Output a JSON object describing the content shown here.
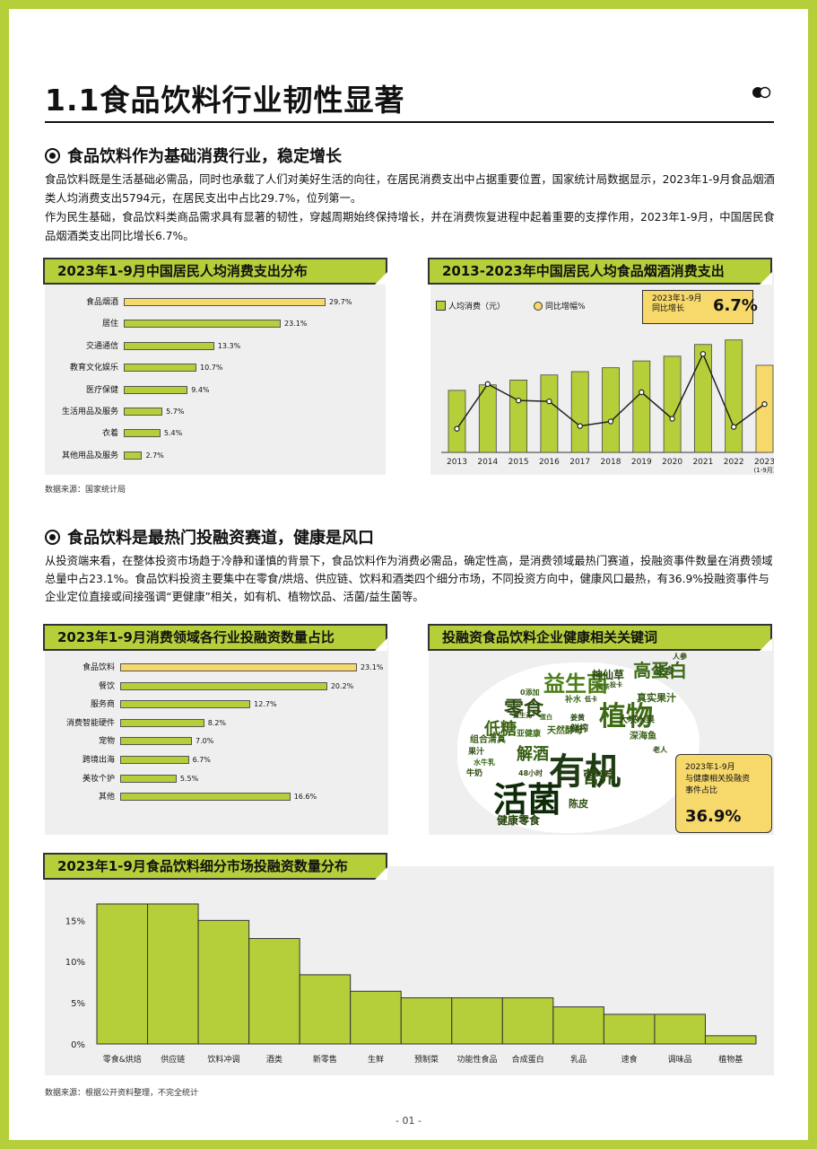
{
  "title": "1.1食品饮料行业韧性显著",
  "section1": {
    "heading": "食品饮料作为基础消费行业，稳定增长",
    "p1": "食品饮料既是生活基础必需品，同时也承载了人们对美好生活的向往，在居民消费支出中占据重要位置，国家统计局数据显示，2023年1-9月食品烟酒类人均消费支出5794元，在居民支出中占比29.7%，位列第一。",
    "p2": "作为民生基础，食品饮料类商品需求具有显著的韧性，穿越周期始终保持增长，并在消费恢复进程中起着重要的支撑作用，2023年1-9月，中国居民食品烟酒类支出同比增长6.7%。"
  },
  "chart1": {
    "tag": "2023年1-9月中国居民人均消费支出分布",
    "chart_data": {
      "type": "bar",
      "categories": [
        "食品烟酒",
        "居住",
        "交通通信",
        "教育文化娱乐",
        "医疗保健",
        "生活用品及服务",
        "衣着",
        "其他用品及服务"
      ],
      "values": [
        29.7,
        23.1,
        13.3,
        10.7,
        9.4,
        5.7,
        5.4,
        2.7
      ],
      "labels": [
        "29.7%",
        "23.1%",
        "13.3%",
        "10.7%",
        "9.4%",
        "5.7%",
        "5.4%",
        "2.7%"
      ],
      "colors": [
        "#f6d86b",
        "#b5cf3a",
        "#b5cf3a",
        "#b5cf3a",
        "#b5cf3a",
        "#b5cf3a",
        "#b5cf3a",
        "#b5cf3a"
      ]
    }
  },
  "chart2": {
    "tag": "2013-2023年中国居民人均食品烟酒消费支出",
    "legend_bar": "人均消费（元）",
    "legend_line": "同比增幅%",
    "callout_label": "2023年1-9月\n同比增长",
    "callout_value": "6.7%",
    "chart_data": {
      "type": "bar+line",
      "categories": [
        "2013",
        "2014",
        "2015",
        "2016",
        "2017",
        "2018",
        "2019",
        "2020",
        "2021",
        "2022",
        "2023"
      ],
      "last_sublabel": "(1-9月)",
      "bar_values": [
        4127,
        4494,
        4814,
        5151,
        5374,
        5631,
        6084,
        6397,
        7178,
        7481,
        5794
      ],
      "line_values": [
        4.0,
        8.9,
        7.1,
        7.0,
        4.3,
        4.8,
        8.0,
        5.1,
        12.2,
        4.2,
        6.7
      ],
      "bar_colors": [
        "#b5cf3a",
        "#b5cf3a",
        "#b5cf3a",
        "#b5cf3a",
        "#b5cf3a",
        "#b5cf3a",
        "#b5cf3a",
        "#b5cf3a",
        "#b5cf3a",
        "#b5cf3a",
        "#f6d86b"
      ]
    }
  },
  "source1": "数据来源：国家统计局",
  "section2": {
    "heading": "食品饮料是最热门投融资赛道，健康是风口",
    "p1": "从投资端来看，在整体投资市场趋于冷静和谨慎的背景下，食品饮料作为消费必需品，确定性高，是消费领域最热门赛道，投融资事件数量在消费领域总量中占23.1%。食品饮料投资主要集中在零食/烘焙、供应链、饮料和酒类四个细分市场，不同投资方向中，健康风口最热，有36.9%投融资事件与企业定位直接或间接强调“更健康”相关，如有机、植物饮品、活菌/益生菌等。"
  },
  "chart3": {
    "tag": "2023年1-9月消费领域各行业投融资数量占比",
    "chart_data": {
      "type": "bar",
      "categories": [
        "食品饮料",
        "餐饮",
        "服务商",
        "消费智能硬件",
        "宠物",
        "跨境出海",
        "美妆个护",
        "其他"
      ],
      "values": [
        23.1,
        20.2,
        12.7,
        8.2,
        7.0,
        6.7,
        5.5,
        16.6
      ],
      "labels": [
        "23.1%",
        "20.2%",
        "12.7%",
        "8.2%",
        "7.0%",
        "6.7%",
        "5.5%",
        "16.6%"
      ],
      "colors": [
        "#f6d86b",
        "#b5cf3a",
        "#b5cf3a",
        "#b5cf3a",
        "#b5cf3a",
        "#b5cf3a",
        "#b5cf3a",
        "#b5cf3a"
      ]
    }
  },
  "chart4": {
    "tag": "投融资食品饮料企业健康相关关键词",
    "words": [
      "有机",
      "活菌",
      "植物",
      "益生菌",
      "零食",
      "高蛋白",
      "低糖",
      "营养",
      "解酒",
      "健康零食",
      "神仙草",
      "轻食",
      "真实果汁",
      "大块水果",
      "深海鱼",
      "天然酵母",
      "鲜榨",
      "组合清真",
      "亚健康",
      "果汁",
      "水牛乳",
      "牛奶",
      "48小时",
      "陈皮",
      "人参",
      "补水",
      "0添加",
      "老人",
      "姜黄",
      "藤茶",
      "益生元",
      "低卡",
      "投卡",
      "蛋白"
    ],
    "callout_label": "2023年1-9月\n与健康相关投融资\n事件占比",
    "callout_value": "36.9%"
  },
  "chart5": {
    "tag": "2023年1-9月食品饮料细分市场投融资数量分布",
    "chart_data": {
      "type": "bar",
      "categories": [
        "零食&烘焙",
        "供应链",
        "饮料冲调",
        "酒类",
        "新零售",
        "生鲜",
        "预制菜",
        "功能性食品",
        "合成蛋白",
        "乳品",
        "速食",
        "调味品",
        "植物基"
      ],
      "values": [
        17.0,
        17.0,
        15.0,
        12.8,
        8.4,
        6.4,
        5.6,
        5.6,
        5.6,
        4.5,
        3.6,
        3.6,
        1.0
      ],
      "y_ticks": [
        "0%",
        "5%",
        "10%",
        "15%"
      ],
      "ylim": [
        0,
        17
      ]
    }
  },
  "source2": "数据来源：根据公开资料整理，不完全统计",
  "footer": "- 01 -"
}
